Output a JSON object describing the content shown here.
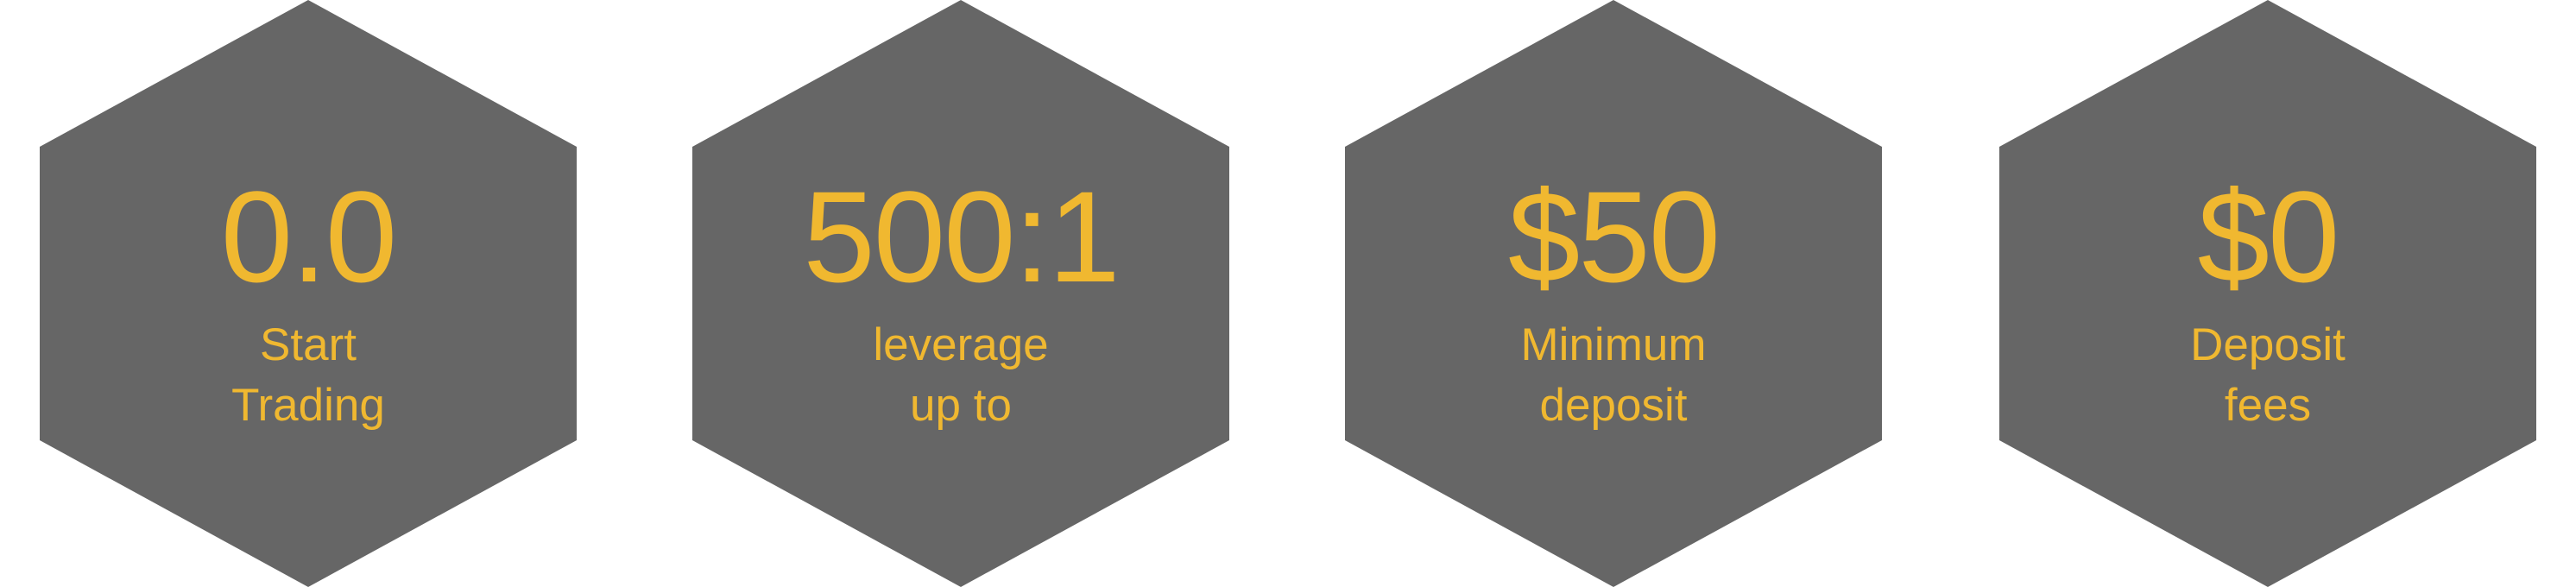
{
  "colors": {
    "hex_fill": "#666666",
    "accent_text": "#f0b830",
    "background": "#ffffff"
  },
  "stats": [
    {
      "value": "0.0",
      "caption_line1": "Start",
      "caption_line2": "Trading"
    },
    {
      "value": "500:1",
      "caption_line1": "leverage",
      "caption_line2": "up to"
    },
    {
      "value": "$50",
      "caption_line1": "Minimum",
      "caption_line2": "deposit"
    },
    {
      "value": "$0",
      "caption_line1": "Deposit",
      "caption_line2": "fees"
    }
  ]
}
